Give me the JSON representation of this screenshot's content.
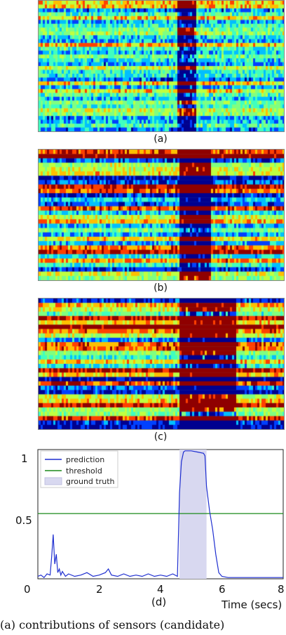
{
  "captions": {
    "a": "(a)",
    "b": "(b)",
    "c": "(c)",
    "d": "(d)"
  },
  "bottom_caption": "(a) contributions of sensors (candidate)",
  "heatmap_colors": [
    "#00008f",
    "#0040ff",
    "#00bfff",
    "#40ffbf",
    "#80ff80",
    "#bfff40",
    "#ffbf00",
    "#ff4000",
    "#8f0000"
  ],
  "chart_data": {
    "type": "line",
    "xlabel": "Time (secs)",
    "xlim": [
      0,
      8
    ],
    "ylim": [
      0,
      1.05
    ],
    "x_ticks": [
      0,
      2,
      4,
      6,
      8
    ],
    "x_tick_labels": [
      "0",
      "2",
      "4",
      "6",
      "8"
    ],
    "y_ticks": [
      0.5,
      1
    ],
    "y_tick_labels": [
      "0.5",
      "1"
    ],
    "legend": {
      "placement": "top-left",
      "entries": [
        "prediction",
        "threshold",
        "ground truth"
      ]
    },
    "colors": {
      "prediction": "#1f2fd0",
      "threshold": "#1a8a1a",
      "ground_truth": "#d8d8f0"
    },
    "threshold": 0.53,
    "ground_truth": {
      "start": 4.62,
      "end": 5.5
    },
    "series": [
      {
        "name": "prediction",
        "x": [
          0.0,
          0.1,
          0.2,
          0.3,
          0.4,
          0.45,
          0.5,
          0.55,
          0.6,
          0.65,
          0.7,
          0.75,
          0.8,
          0.9,
          1.0,
          1.2,
          1.4,
          1.6,
          1.8,
          2.0,
          2.2,
          2.3,
          2.4,
          2.6,
          2.8,
          3.0,
          3.2,
          3.4,
          3.6,
          3.8,
          4.0,
          4.2,
          4.4,
          4.55,
          4.62,
          4.68,
          4.75,
          4.8,
          4.9,
          5.0,
          5.2,
          5.4,
          5.45,
          5.5,
          5.6,
          5.7,
          5.8,
          5.9,
          6.0,
          6.2,
          6.5,
          7.0,
          7.5,
          8.0
        ],
        "values": [
          0.02,
          0.03,
          0.01,
          0.04,
          0.03,
          0.18,
          0.36,
          0.12,
          0.2,
          0.05,
          0.08,
          0.03,
          0.06,
          0.02,
          0.04,
          0.02,
          0.03,
          0.05,
          0.02,
          0.03,
          0.05,
          0.08,
          0.03,
          0.02,
          0.04,
          0.02,
          0.03,
          0.02,
          0.04,
          0.02,
          0.03,
          0.02,
          0.04,
          0.02,
          0.7,
          0.95,
          1.03,
          1.04,
          1.04,
          1.04,
          1.03,
          1.02,
          1.0,
          0.75,
          0.55,
          0.4,
          0.2,
          0.05,
          0.02,
          0.01,
          0.01,
          0.01,
          0.01,
          0.01
        ]
      }
    ]
  }
}
